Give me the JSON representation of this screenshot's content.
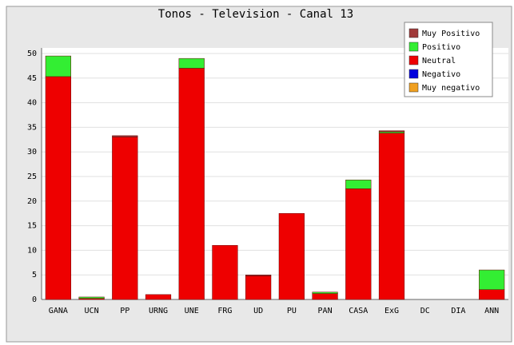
{
  "chart_data": {
    "type": "stacked_bar",
    "title": "Tonos - Television - Canal 13",
    "categories": [
      "GANA",
      "UCN",
      "PP",
      "URNG",
      "UNE",
      "FRG",
      "UD",
      "PU",
      "PAN",
      "CASA",
      "ExG",
      "DC",
      "DIA",
      "ANN"
    ],
    "series": [
      {
        "name": "Muy Positivo",
        "color": "#a03a3a",
        "values": [
          0,
          0,
          0.3,
          0,
          0,
          0,
          0.2,
          0,
          0,
          0,
          0.2,
          0,
          0,
          0
        ]
      },
      {
        "name": "Positivo",
        "color": "#33ee33",
        "values": [
          4.2,
          0.3,
          0,
          0,
          2,
          0,
          0,
          0,
          0.3,
          1.8,
          0.3,
          0,
          0,
          4
        ]
      },
      {
        "name": "Neutral",
        "color": "#ee0000",
        "values": [
          45.3,
          0.2,
          33,
          1,
          47,
          11,
          4.8,
          17.5,
          1.2,
          22.5,
          33.8,
          0,
          0,
          2
        ]
      },
      {
        "name": "Negativo",
        "color": "#0000dd",
        "values": [
          0,
          0,
          0,
          0,
          0,
          0,
          0,
          0,
          0,
          0,
          0,
          0,
          0,
          0
        ]
      },
      {
        "name": "Muy negativo",
        "color": "#f0a020",
        "values": [
          0,
          0,
          0,
          0,
          0,
          0,
          0,
          0,
          0,
          0,
          0,
          0,
          0,
          0
        ]
      }
    ],
    "ylim": [
      0,
      50
    ],
    "yticks": [
      0,
      5,
      10,
      15,
      20,
      25,
      30,
      35,
      40,
      45,
      50
    ],
    "grid": true,
    "legend": "top-right"
  }
}
